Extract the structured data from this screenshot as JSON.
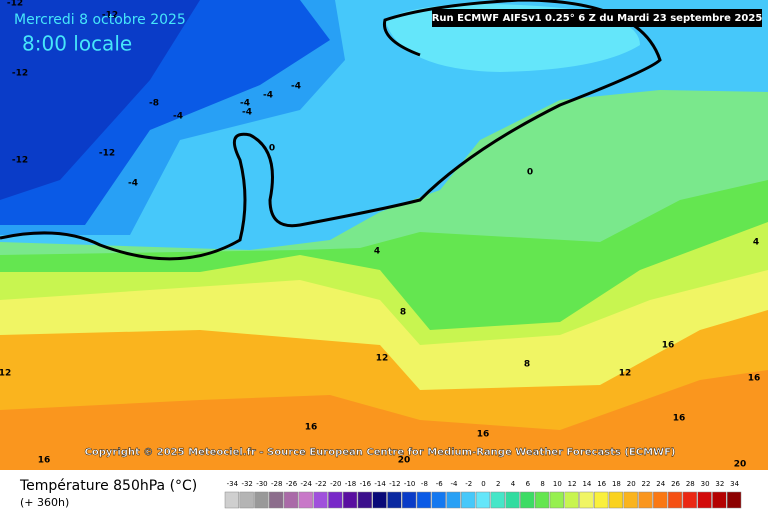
{
  "header": {
    "date": "Mercredi 8 octobre 2025",
    "time": "8:00 locale",
    "run": "Run ECMWF AIFSv1 0.25° 6 Z du Mardi 23 septembre 2025"
  },
  "contour_labels": [
    "-12",
    "-12",
    "-12",
    "-12",
    "-12",
    "-8",
    "-4",
    "-4",
    "-4",
    "-4",
    "-4",
    "-4",
    "0",
    "0",
    "4",
    "4",
    "8",
    "8",
    "12",
    "12",
    "12",
    "16",
    "16",
    "16",
    "16",
    "16",
    "16",
    "20",
    "20"
  ],
  "copyright": "Copyright © 2025 Meteociel.fr - Source European Centre for Medium-Range Weather Forecasts (ECMWF)",
  "legend": {
    "title": "Température 850hPa (°C)",
    "lead": "(+ 360h)",
    "ticks": [
      -34,
      -32,
      -30,
      -28,
      -26,
      -24,
      -22,
      -20,
      -18,
      -16,
      -14,
      -12,
      -10,
      -8,
      -6,
      -4,
      -2,
      0,
      2,
      4,
      6,
      8,
      10,
      12,
      14,
      16,
      18,
      20,
      22,
      24,
      26,
      28,
      30,
      32,
      34
    ],
    "colors": [
      "#cfcfcf",
      "#b4b4b4",
      "#999999",
      "#8c6d8c",
      "#aa6aa8",
      "#c878c8",
      "#a050dc",
      "#7828c8",
      "#5a0fa0",
      "#3c0f8c",
      "#0a0a78",
      "#0a28a0",
      "#0a3cc8",
      "#0a5ae6",
      "#1478f0",
      "#28a0f5",
      "#46c8fa",
      "#64e6fa",
      "#46e6c8",
      "#32dca0",
      "#3cdc64",
      "#64e650",
      "#96f050",
      "#c8f550",
      "#f0f564",
      "#faf03c",
      "#fad21e",
      "#fab41e",
      "#fa961e",
      "#fa7814",
      "#f55014",
      "#eb2814",
      "#d20a0a",
      "#b40000",
      "#8c0000"
    ]
  }
}
